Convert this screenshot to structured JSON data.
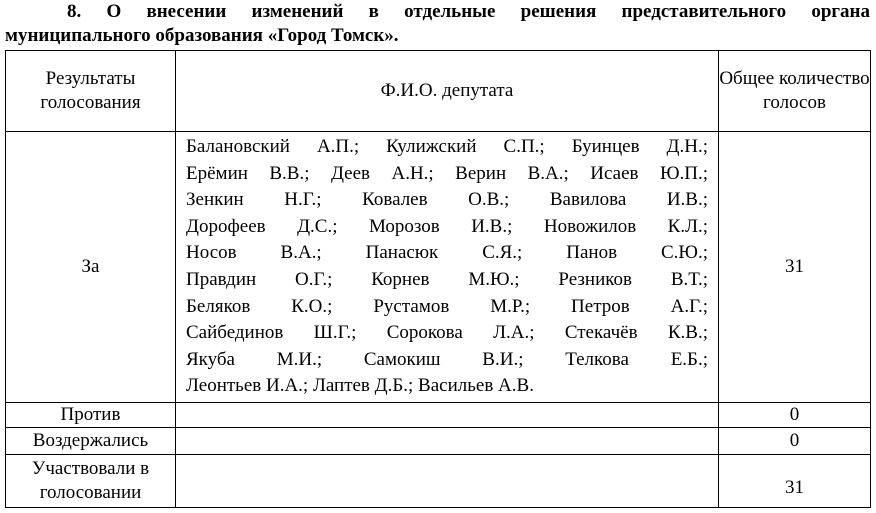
{
  "heading": {
    "line1": "8. О внесении изменений в отдельные решения представительного органа",
    "line2": "муниципального образования «Город Томск»."
  },
  "table": {
    "headers": [
      "Результаты голосования",
      "Ф.И.О. депутата",
      "Общее количество голосов"
    ],
    "rows": [
      {
        "result": "За",
        "deputies_lines": [
          "Балановский А.П.; Кулижский С.П.; Буинцев Д.Н.;",
          "Ерёмин В.В.; Деев А.Н.; Верин В.А.; Исаев Ю.П.;",
          "Зенкин Н.Г.; Ковалев О.В.; Вавилова И.В.;",
          "Дорофеев Д.С.; Морозов И.В.; Новожилов К.Л.;",
          "Носов В.А.; Панасюк С.Я.; Панов С.Ю.;",
          "Правдин О.Г.; Корнев М.Ю.; Резников В.Т.;",
          "Беляков К.О.; Рустамов М.Р.; Петров А.Г.;",
          "Сайбединов Ш.Г.; Сорокова Л.А.; Стекачёв К.В.;",
          "Якуба М.И.; Самокиш В.И.; Телкова Е.Б.;",
          "Леонтьев И.А.; Лаптев Д.Б.; Васильев А.В."
        ],
        "count": "31"
      },
      {
        "result": "Против",
        "count": "0"
      },
      {
        "result": "Воздержались",
        "count": "0"
      },
      {
        "result": "Участвовали в голосовании",
        "count": "31"
      }
    ]
  }
}
